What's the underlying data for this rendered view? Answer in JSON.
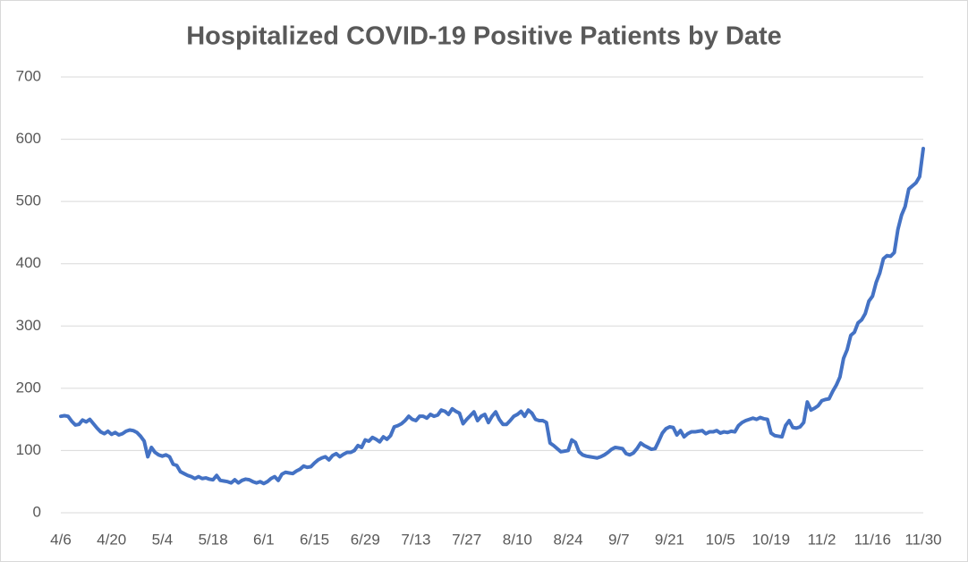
{
  "chart_data": {
    "type": "line",
    "title": "Hospitalized COVID-19 Positive Patients by Date",
    "categories": [
      "4/6",
      null,
      null,
      null,
      null,
      null,
      null,
      null,
      null,
      null,
      null,
      null,
      null,
      null,
      "4/20",
      null,
      null,
      null,
      null,
      null,
      null,
      null,
      null,
      null,
      null,
      null,
      null,
      null,
      "5/4",
      null,
      null,
      null,
      null,
      null,
      null,
      null,
      null,
      null,
      null,
      null,
      null,
      null,
      "5/18",
      null,
      null,
      null,
      null,
      null,
      null,
      null,
      null,
      null,
      null,
      null,
      null,
      null,
      "6/1",
      null,
      null,
      null,
      null,
      null,
      null,
      null,
      null,
      null,
      null,
      null,
      null,
      null,
      "6/15",
      null,
      null,
      null,
      null,
      null,
      null,
      null,
      null,
      null,
      null,
      null,
      null,
      null,
      "6/29",
      null,
      null,
      null,
      null,
      null,
      null,
      null,
      null,
      null,
      null,
      null,
      null,
      null,
      "7/13",
      null,
      null,
      null,
      null,
      null,
      null,
      null,
      null,
      null,
      null,
      null,
      null,
      null,
      "7/27",
      null,
      null,
      null,
      null,
      null,
      null,
      null,
      null,
      null,
      null,
      null,
      null,
      null,
      "8/10",
      null,
      null,
      null,
      null,
      null,
      null,
      null,
      null,
      null,
      null,
      null,
      null,
      null,
      "8/24",
      null,
      null,
      null,
      null,
      null,
      null,
      null,
      null,
      null,
      null,
      null,
      null,
      null,
      "9/7",
      null,
      null,
      null,
      null,
      null,
      null,
      null,
      null,
      null,
      null,
      null,
      null,
      null,
      "9/21",
      null,
      null,
      null,
      null,
      null,
      null,
      null,
      null,
      null,
      null,
      null,
      null,
      null,
      "10/5",
      null,
      null,
      null,
      null,
      null,
      null,
      null,
      null,
      null,
      null,
      null,
      null,
      null,
      "10/19",
      null,
      null,
      null,
      null,
      null,
      null,
      null,
      null,
      null,
      null,
      null,
      null,
      null,
      "11/2",
      null,
      null,
      null,
      null,
      null,
      null,
      null,
      null,
      null,
      null,
      null,
      null,
      null,
      "11/16",
      null,
      null,
      null,
      null,
      null,
      null,
      null,
      null,
      null,
      null,
      null,
      null,
      null,
      "11/30"
    ],
    "values": [
      155,
      156,
      155,
      147,
      141,
      142,
      149,
      146,
      150,
      143,
      136,
      130,
      127,
      131,
      126,
      129,
      125,
      127,
      131,
      133,
      132,
      129,
      123,
      115,
      90,
      105,
      97,
      93,
      91,
      93,
      90,
      78,
      76,
      66,
      63,
      60,
      58,
      55,
      58,
      55,
      56,
      54,
      53,
      60,
      52,
      51,
      50,
      48,
      53,
      48,
      52,
      54,
      53,
      50,
      48,
      50,
      47,
      50,
      55,
      58,
      52,
      62,
      65,
      64,
      63,
      67,
      70,
      75,
      73,
      74,
      80,
      85,
      88,
      90,
      85,
      92,
      95,
      90,
      94,
      97,
      97,
      100,
      108,
      105,
      117,
      115,
      121,
      118,
      114,
      122,
      118,
      124,
      138,
      140,
      143,
      148,
      155,
      150,
      148,
      155,
      155,
      152,
      158,
      155,
      157,
      165,
      163,
      158,
      167,
      163,
      160,
      143,
      150,
      156,
      162,
      148,
      155,
      158,
      145,
      155,
      162,
      150,
      142,
      142,
      148,
      155,
      158,
      163,
      155,
      165,
      160,
      150,
      148,
      148,
      145,
      112,
      108,
      103,
      98,
      99,
      100,
      117,
      113,
      98,
      93,
      91,
      90,
      89,
      88,
      90,
      93,
      97,
      102,
      105,
      104,
      103,
      95,
      93,
      96,
      103,
      112,
      108,
      105,
      102,
      103,
      115,
      128,
      135,
      138,
      137,
      125,
      132,
      122,
      127,
      130,
      130,
      131,
      132,
      127,
      130,
      130,
      132,
      128,
      130,
      129,
      131,
      130,
      140,
      145,
      148,
      150,
      152,
      150,
      153,
      151,
      150,
      128,
      124,
      123,
      122,
      140,
      148,
      137,
      136,
      138,
      145,
      178,
      165,
      168,
      172,
      180,
      182,
      183,
      195,
      205,
      218,
      248,
      262,
      285,
      290,
      305,
      310,
      320,
      340,
      348,
      370,
      385,
      408,
      413,
      412,
      418,
      455,
      478,
      492,
      520,
      525,
      530,
      540,
      585
    ],
    "color": "#4472c4",
    "ylim": [
      0,
      700
    ],
    "yticks": [
      0,
      100,
      200,
      300,
      400,
      500,
      600,
      700
    ],
    "grid": true
  }
}
